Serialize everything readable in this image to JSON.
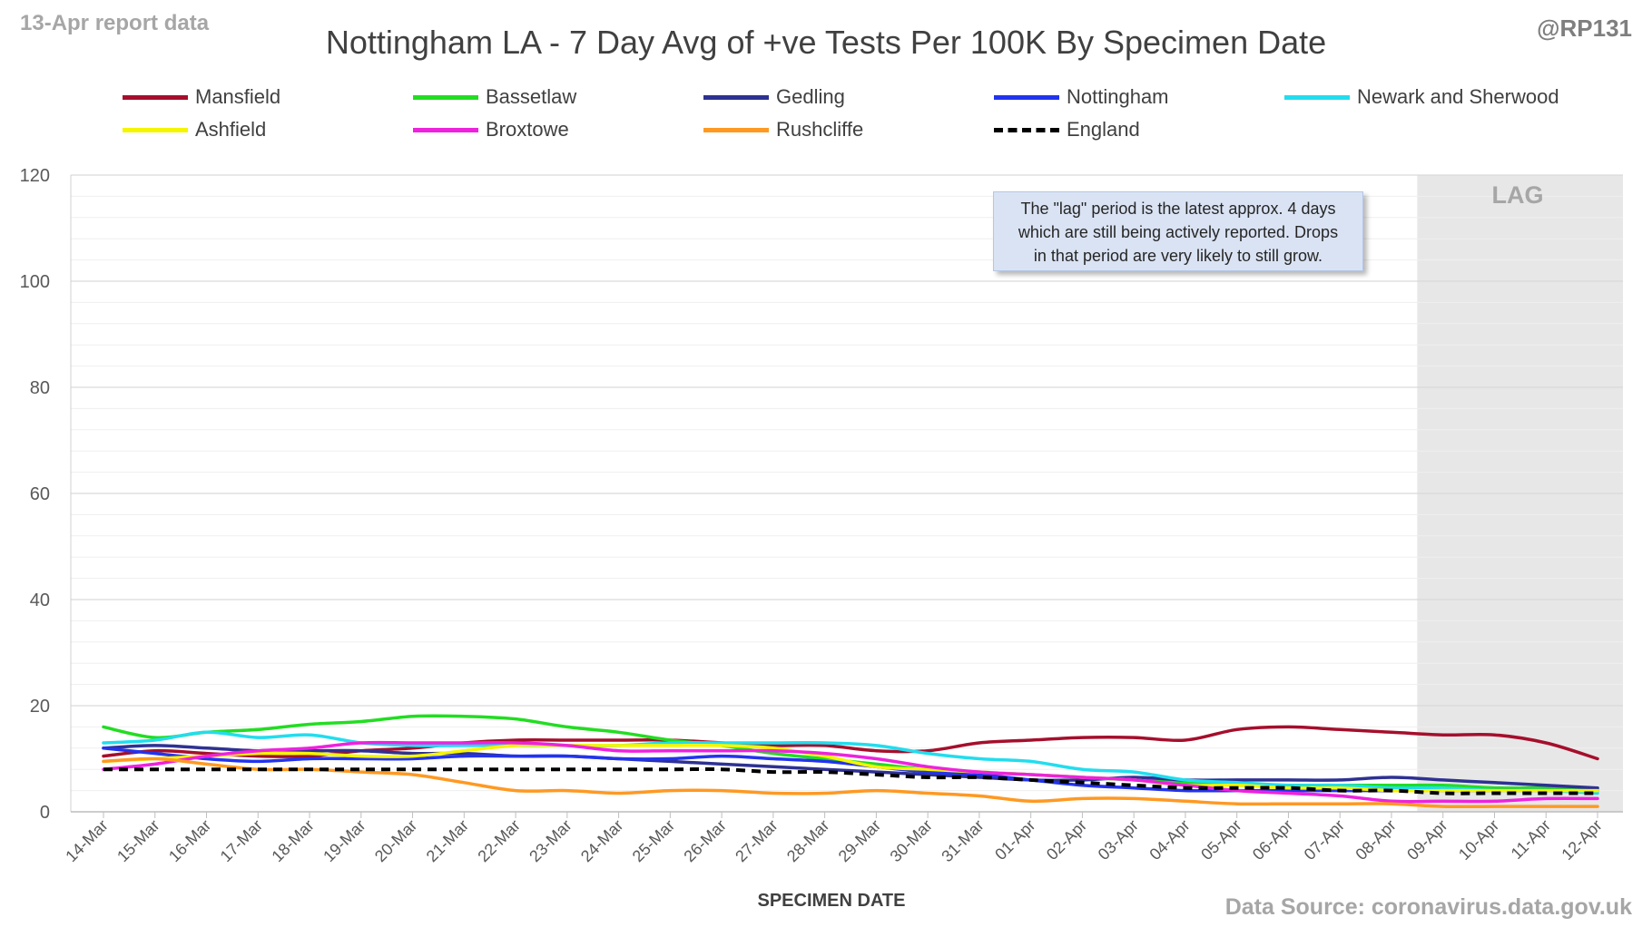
{
  "header": {
    "report_label": "13-Apr report data",
    "handle": "@RP131"
  },
  "footer": {
    "source": "Data Source: coronavirus.data.gov.uk"
  },
  "note": {
    "line1": "The \"lag\" period is the latest approx. 4 days",
    "line2": "which are still being actively reported.  Drops",
    "line3": "in that period are very likely to still grow."
  },
  "colors": {
    "gridline": "#d9d9d9",
    "lag_region": "#e7e7e7",
    "axis_text": "#595959"
  },
  "chart_data": {
    "type": "line",
    "title": "Nottingham LA - 7 Day Avg of +ve Tests Per 100K By Specimen Date",
    "xlabel": "SPECIMEN DATE",
    "ylabel": "",
    "ylim": [
      0,
      120
    ],
    "y_ticks": [
      0,
      20,
      40,
      60,
      80,
      100,
      120
    ],
    "grid": true,
    "legend_position": "top",
    "lag_region": {
      "from": "09-Apr",
      "to": "12-Apr",
      "label": "LAG"
    },
    "categories": [
      "14-Mar",
      "15-Mar",
      "16-Mar",
      "17-Mar",
      "18-Mar",
      "19-Mar",
      "20-Mar",
      "21-Mar",
      "22-Mar",
      "23-Mar",
      "24-Mar",
      "25-Mar",
      "26-Mar",
      "27-Mar",
      "28-Mar",
      "29-Mar",
      "30-Mar",
      "31-Mar",
      "01-Apr",
      "02-Apr",
      "03-Apr",
      "04-Apr",
      "05-Apr",
      "06-Apr",
      "07-Apr",
      "08-Apr",
      "09-Apr",
      "10-Apr",
      "11-Apr",
      "12-Apr"
    ],
    "series": [
      {
        "name": "Mansfield",
        "color": "#a50f2c",
        "dashed": false,
        "values": [
          10.5,
          11.5,
          11.0,
          10.5,
          10.5,
          11.5,
          12.0,
          13.0,
          13.5,
          13.5,
          13.5,
          13.5,
          13.0,
          12.5,
          12.5,
          11.5,
          11.5,
          13.0,
          13.5,
          14.0,
          14.0,
          13.5,
          15.5,
          16.0,
          15.5,
          15.0,
          14.5,
          14.5,
          13.0,
          10.0
        ]
      },
      {
        "name": "Bassetlaw",
        "color": "#22dd22",
        "dashed": false,
        "values": [
          16.0,
          14.0,
          15.0,
          15.5,
          16.5,
          17.0,
          18.0,
          18.0,
          17.5,
          16.0,
          15.0,
          13.5,
          12.5,
          11.0,
          10.0,
          9.0,
          8.0,
          7.5,
          7.0,
          6.5,
          6.0,
          5.5,
          5.0,
          5.0,
          5.0,
          5.0,
          5.0,
          4.5,
          4.5,
          4.5
        ]
      },
      {
        "name": "Gedling",
        "color": "#2e3192",
        "dashed": false,
        "values": [
          12.0,
          12.5,
          12.0,
          11.5,
          11.5,
          11.5,
          11.0,
          11.0,
          10.5,
          10.5,
          10.0,
          9.5,
          9.0,
          8.5,
          8.0,
          7.5,
          7.0,
          6.5,
          6.0,
          6.0,
          6.5,
          6.0,
          6.0,
          6.0,
          6.0,
          6.5,
          6.0,
          5.5,
          5.0,
          4.5
        ]
      },
      {
        "name": "Nottingham",
        "color": "#2233ee",
        "dashed": false,
        "values": [
          12.0,
          11.0,
          10.0,
          9.5,
          10.0,
          10.0,
          10.0,
          10.5,
          10.5,
          10.5,
          10.0,
          10.0,
          10.5,
          10.0,
          9.5,
          8.5,
          7.5,
          7.0,
          6.0,
          5.0,
          4.5,
          4.0,
          4.0,
          4.0,
          4.0,
          4.0,
          4.0,
          4.0,
          4.0,
          4.0
        ]
      },
      {
        "name": "Newark and Sherwood",
        "color": "#22ddee",
        "dashed": false,
        "values": [
          13.0,
          13.5,
          15.0,
          14.0,
          14.5,
          13.0,
          12.5,
          12.5,
          12.5,
          12.5,
          12.5,
          13.0,
          13.0,
          13.0,
          13.0,
          12.5,
          11.0,
          10.0,
          9.5,
          8.0,
          7.5,
          6.0,
          5.5,
          5.0,
          5.0,
          4.5,
          4.5,
          4.0,
          4.0,
          3.5
        ]
      },
      {
        "name": "Ashfield",
        "color": "#f5f500",
        "dashed": false,
        "values": [
          9.5,
          10.0,
          10.5,
          11.0,
          11.0,
          10.5,
          10.5,
          11.5,
          12.5,
          12.5,
          12.5,
          12.5,
          12.5,
          12.0,
          10.5,
          8.5,
          8.0,
          7.5,
          7.0,
          6.5,
          6.0,
          5.0,
          5.0,
          4.5,
          4.5,
          4.0,
          4.0,
          4.0,
          4.0,
          4.0
        ]
      },
      {
        "name": "Broxtowe",
        "color": "#ee22dd",
        "dashed": false,
        "values": [
          8.0,
          9.0,
          10.5,
          11.5,
          12.0,
          13.0,
          13.0,
          13.0,
          13.0,
          12.5,
          11.5,
          11.5,
          11.5,
          11.5,
          11.0,
          10.0,
          8.5,
          7.5,
          7.0,
          6.5,
          6.0,
          5.0,
          4.0,
          3.5,
          3.0,
          2.0,
          2.0,
          2.0,
          2.5,
          2.5
        ]
      },
      {
        "name": "Rushcliffe",
        "color": "#ff9922",
        "dashed": false,
        "values": [
          9.5,
          10.0,
          9.0,
          8.0,
          8.0,
          7.5,
          7.0,
          5.5,
          4.0,
          4.0,
          3.5,
          4.0,
          4.0,
          3.5,
          3.5,
          4.0,
          3.5,
          3.0,
          2.0,
          2.5,
          2.5,
          2.0,
          1.5,
          1.5,
          1.5,
          1.5,
          1.0,
          1.0,
          1.0,
          1.0
        ]
      },
      {
        "name": "England",
        "color": "#000000",
        "dashed": true,
        "values": [
          8.0,
          8.0,
          8.0,
          8.0,
          8.0,
          8.0,
          8.0,
          8.0,
          8.0,
          8.0,
          8.0,
          8.0,
          8.0,
          7.5,
          7.5,
          7.0,
          6.5,
          6.5,
          6.0,
          5.5,
          5.0,
          4.5,
          4.5,
          4.5,
          4.0,
          4.0,
          3.5,
          3.5,
          3.5,
          3.5
        ]
      }
    ]
  }
}
